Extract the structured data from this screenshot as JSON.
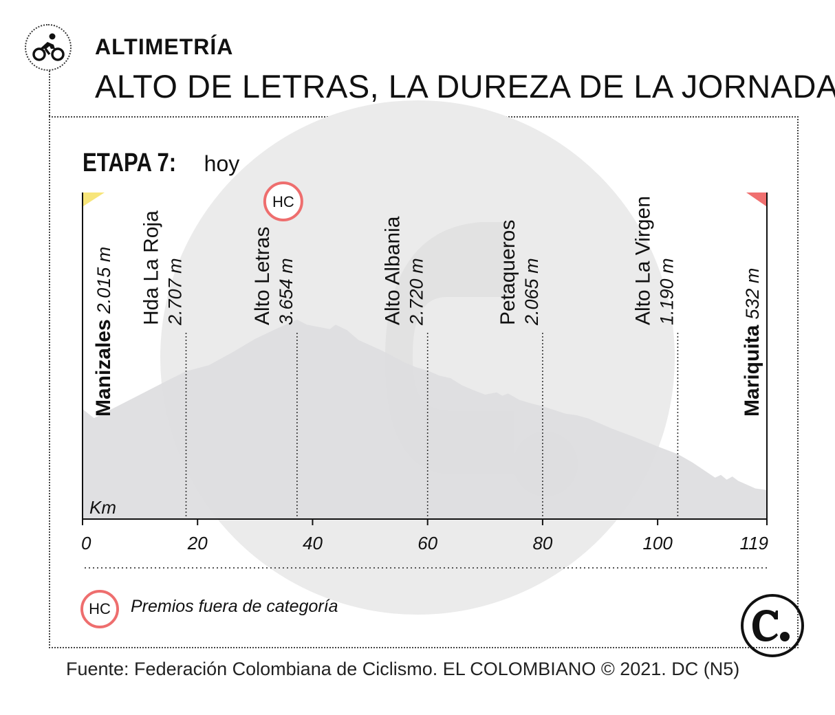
{
  "header": {
    "supertitle": "ALTIMETRÍA",
    "title": "ALTO DE LETRAS, LA DUREZA DE LA JORNADA",
    "stage_label": "ETAPA 7:",
    "stage_day": "hoy"
  },
  "legend": {
    "badge": "HC",
    "text": "Premios fuera de categoría"
  },
  "source": "Fuente: Federación Colombiana de Ciclismo. EL COLOMBIANO © 2021. DC (N5)",
  "logo_text": "C.",
  "icons": [
    "cyclist-icon",
    "el-colombiano-logo"
  ],
  "colors": {
    "profile_fill": "#dddddf",
    "watermark": "#ebebeb",
    "hc_ring": "#ee6e6e",
    "start_flag": "#f7e57a",
    "finish_flag": "#f07070"
  },
  "chart_data": {
    "type": "area",
    "xlabel": "Km",
    "ylabel": "",
    "xlim": [
      0,
      119
    ],
    "x_ticks": [
      {
        "value": 0,
        "label": "0"
      },
      {
        "value": 20,
        "label": "20"
      },
      {
        "value": 40,
        "label": "40"
      },
      {
        "value": 60,
        "label": "60"
      },
      {
        "value": 80,
        "label": "80"
      },
      {
        "value": 100,
        "label": "100"
      },
      {
        "value": 119,
        "label": "119"
      }
    ],
    "ylim": [
      0,
      4000
    ],
    "grid": false,
    "legend_position": "bottom-left",
    "profile": {
      "x": [
        0,
        2,
        5,
        10,
        15,
        18,
        22,
        26,
        30,
        34,
        37.3,
        39,
        41,
        43,
        44,
        46,
        48,
        52,
        56,
        58,
        60,
        62,
        64,
        66,
        68,
        70,
        72,
        73,
        74,
        76,
        78,
        80,
        84,
        86,
        88,
        92,
        96,
        100,
        103.5,
        106,
        110,
        111,
        112,
        113,
        114,
        117,
        119
      ],
      "y": [
        2015,
        1850,
        2010,
        2280,
        2550,
        2707,
        2820,
        3050,
        3300,
        3500,
        3654,
        3560,
        3520,
        3480,
        3560,
        3460,
        3280,
        3090,
        2870,
        2780,
        2720,
        2630,
        2580,
        2450,
        2360,
        2280,
        2320,
        2260,
        2300,
        2180,
        2120,
        2065,
        1930,
        1900,
        1840,
        1660,
        1500,
        1330,
        1190,
        1040,
        760,
        810,
        720,
        780,
        700,
        560,
        532
      ]
    },
    "points": [
      {
        "name": "Manizales",
        "elevation": "2.015 m",
        "km": 0,
        "type": "start"
      },
      {
        "name": "Hda La Roja",
        "elevation": "2.707 m",
        "km": 18
      },
      {
        "name": "Alto Letras",
        "elevation": "3.654 m",
        "km": 37.3,
        "category": "HC"
      },
      {
        "name": "Alto Albania",
        "elevation": "2.720 m",
        "km": 60
      },
      {
        "name": "Petaqueros",
        "elevation": "2.065 m",
        "km": 80
      },
      {
        "name": "Alto La Virgen",
        "elevation": "1.190 m",
        "km": 103.5
      },
      {
        "name": "Mariquita",
        "elevation": "532 m",
        "km": 119,
        "type": "finish"
      }
    ]
  }
}
